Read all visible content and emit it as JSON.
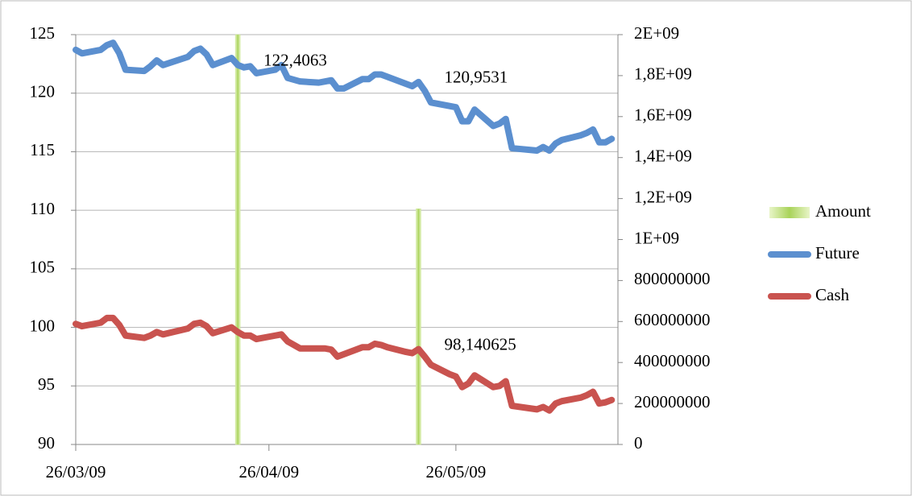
{
  "chart_data": {
    "type": "line",
    "x": [
      "26/03/09",
      "27/03/09",
      "30/03/09",
      "31/03/09",
      "01/04/09",
      "02/04/09",
      "03/04/09",
      "06/04/09",
      "07/04/09",
      "08/04/09",
      "09/04/09",
      "13/04/09",
      "14/04/09",
      "15/04/09",
      "16/04/09",
      "17/04/09",
      "20/04/09",
      "21/04/09",
      "22/04/09",
      "23/04/09",
      "24/04/09",
      "27/04/09",
      "28/04/09",
      "29/04/09",
      "01/05/09",
      "04/05/09",
      "05/05/09",
      "06/05/09",
      "07/05/09",
      "08/05/09",
      "11/05/09",
      "12/05/09",
      "13/05/09",
      "14/05/09",
      "15/05/09",
      "18/05/09",
      "19/05/09",
      "20/05/09",
      "21/05/09",
      "22/05/09",
      "25/05/09",
      "26/05/09",
      "27/05/09",
      "28/05/09",
      "29/05/09",
      "01/06/09",
      "02/06/09",
      "03/06/09",
      "04/06/09",
      "08/06/09",
      "09/06/09",
      "10/06/09",
      "11/06/09",
      "12/06/09",
      "15/06/09",
      "16/06/09",
      "17/06/09",
      "18/06/09",
      "19/06/09",
      "20/06/09"
    ],
    "xlim": [
      "26/03/09",
      "21/06/09"
    ],
    "xticks": [
      "26/03/09",
      "26/04/09",
      "26/05/09"
    ],
    "ylim": [
      90,
      125
    ],
    "yticks": [
      90,
      95,
      100,
      105,
      110,
      115,
      120,
      125
    ],
    "y2lim": [
      0,
      2000000000
    ],
    "y2ticks": [
      0,
      200000000,
      400000000,
      600000000,
      800000000,
      {
        "value": 1000000000,
        "label": "1E+09"
      },
      {
        "value": 1200000000,
        "label": "1,2E+09"
      },
      {
        "value": 1400000000,
        "label": "1,4E+09"
      },
      {
        "value": 1600000000,
        "label": "1,6E+09"
      },
      {
        "value": 1800000000,
        "label": "1,8E+09"
      },
      {
        "value": 2000000000,
        "label": "2E+09"
      }
    ],
    "grid": true,
    "legend": "right",
    "series": [
      {
        "name": "Amount",
        "type": "bar",
        "axis": "y2",
        "color": "#c8e68c",
        "values": [
          null,
          null,
          null,
          null,
          null,
          null,
          null,
          null,
          null,
          null,
          null,
          null,
          null,
          null,
          null,
          null,
          null,
          2000000000,
          null,
          null,
          null,
          null,
          null,
          null,
          null,
          null,
          null,
          null,
          null,
          null,
          null,
          null,
          null,
          null,
          null,
          null,
          null,
          1150000000,
          null,
          null,
          null,
          null,
          null,
          null,
          null,
          null,
          null,
          null,
          null,
          null,
          null,
          null,
          null,
          null,
          null,
          null,
          null,
          null,
          null,
          null
        ]
      },
      {
        "name": "Future",
        "color": "#5b8fcf",
        "values": [
          123.7,
          123.4,
          123.7,
          124.1,
          124.3,
          123.4,
          122.0,
          121.9,
          122.3,
          122.8,
          122.4,
          123.1,
          123.6,
          123.8,
          123.3,
          122.4,
          123.0,
          122.4063,
          122.2,
          122.3,
          121.7,
          122.0,
          122.4,
          121.3,
          121.0,
          120.9,
          121.0,
          121.1,
          120.4,
          120.4,
          121.2,
          121.2,
          121.6,
          121.6,
          121.4,
          120.8,
          120.6,
          120.9531,
          120.2,
          119.2,
          118.9,
          118.8,
          117.6,
          117.6,
          118.6,
          117.2,
          117.4,
          117.8,
          115.3,
          115.1,
          115.4,
          115.1,
          115.7,
          116.0,
          116.4,
          116.6,
          116.9,
          115.8,
          115.8,
          116.1
        ],
        "value_labels": [
          null,
          null,
          null,
          null,
          null,
          null,
          null,
          null,
          null,
          null,
          null,
          null,
          null,
          null,
          null,
          null,
          null,
          "122,4063",
          null,
          null,
          null,
          null,
          null,
          null,
          null,
          null,
          null,
          null,
          null,
          null,
          null,
          null,
          null,
          null,
          null,
          null,
          null,
          "120,9531",
          null,
          null,
          null,
          null,
          null,
          null,
          null,
          null,
          null,
          null,
          null,
          null,
          null,
          null,
          null,
          null,
          null,
          null,
          null,
          null,
          null,
          null
        ]
      },
      {
        "name": "Cash",
        "color": "#c9534f",
        "values": [
          100.3,
          100.1,
          100.4,
          100.8,
          100.8,
          100.2,
          99.3,
          99.1,
          99.3,
          99.6,
          99.4,
          99.9,
          100.3,
          100.4,
          100.1,
          99.5,
          100.0,
          99.6,
          99.3,
          99.3,
          99.0,
          99.3,
          99.4,
          98.8,
          98.2,
          98.2,
          98.2,
          98.1,
          97.5,
          97.7,
          98.3,
          98.3,
          98.6,
          98.5,
          98.3,
          97.9,
          97.8,
          98.140625,
          97.5,
          96.8,
          96.0,
          95.8,
          94.9,
          95.2,
          95.9,
          94.9,
          95.0,
          95.4,
          93.3,
          93.0,
          93.2,
          92.9,
          93.5,
          93.7,
          94.0,
          94.2,
          94.5,
          93.5,
          93.6,
          93.8
        ],
        "value_labels": [
          null,
          null,
          null,
          null,
          null,
          null,
          null,
          null,
          null,
          null,
          null,
          null,
          null,
          null,
          null,
          null,
          null,
          null,
          null,
          null,
          null,
          null,
          null,
          null,
          null,
          null,
          null,
          null,
          null,
          null,
          null,
          null,
          null,
          null,
          null,
          null,
          null,
          "98,140625",
          null,
          null,
          null,
          null,
          null,
          null,
          null,
          null,
          null,
          null,
          null,
          null,
          null,
          null,
          null,
          null,
          null,
          null,
          null,
          null,
          null,
          null
        ]
      }
    ]
  }
}
